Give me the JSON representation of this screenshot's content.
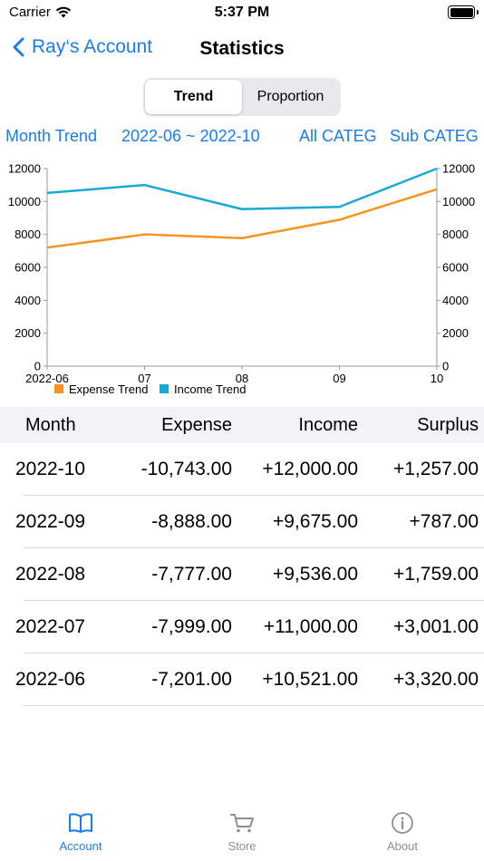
{
  "status_bar": {
    "carrier": "Carrier",
    "time": "5:37 PM"
  },
  "nav": {
    "back_label": "Ray‘s Account",
    "title": "Statistics"
  },
  "segments": [
    {
      "label": "Trend",
      "active": true
    },
    {
      "label": "Proportion",
      "active": false
    }
  ],
  "filters": {
    "mode": "Month Trend",
    "range": "2022-06 ~ 2022-10",
    "category": "All CATEG",
    "subcategory": "Sub CATEG"
  },
  "chart_data": {
    "type": "line",
    "categories": [
      "2022-06",
      "07",
      "08",
      "09",
      "10"
    ],
    "series": [
      {
        "name": "Expense Trend",
        "values": [
          7201,
          7999,
          7777,
          8888,
          10743
        ],
        "color": "#f5941e"
      },
      {
        "name": "Income Trend",
        "values": [
          10521,
          11000,
          9536,
          9675,
          12000
        ],
        "color": "#1aa8d4"
      }
    ],
    "yticks": [
      "12000",
      "10000",
      "8000",
      "6000",
      "4000",
      "2000",
      "0"
    ],
    "ylim": [
      0,
      12000
    ],
    "legend_position": "bottom-left",
    "grid": false
  },
  "table": {
    "headers": {
      "month": "Month",
      "expense": "Expense",
      "income": "Income",
      "surplus": "Surplus"
    },
    "rows": [
      {
        "month": "2022-10",
        "expense": "-10,743.00",
        "income": "+12,000.00",
        "surplus": "+1,257.00"
      },
      {
        "month": "2022-09",
        "expense": "-8,888.00",
        "income": "+9,675.00",
        "surplus": "+787.00"
      },
      {
        "month": "2022-08",
        "expense": "-7,777.00",
        "income": "+9,536.00",
        "surplus": "+1,759.00"
      },
      {
        "month": "2022-07",
        "expense": "-7,999.00",
        "income": "+11,000.00",
        "surplus": "+3,001.00"
      },
      {
        "month": "2022-06",
        "expense": "-7,201.00",
        "income": "+10,521.00",
        "surplus": "+3,320.00"
      }
    ]
  },
  "tabs": [
    {
      "label": "Account",
      "icon": "book-icon",
      "active": true
    },
    {
      "label": "Store",
      "icon": "cart-icon",
      "active": false
    },
    {
      "label": "About",
      "icon": "info-icon",
      "active": false
    }
  ],
  "colors": {
    "accent": "#1a7cf0",
    "inactive": "#8e8e93",
    "expense": "#f5941e",
    "income": "#1aa8d4"
  }
}
